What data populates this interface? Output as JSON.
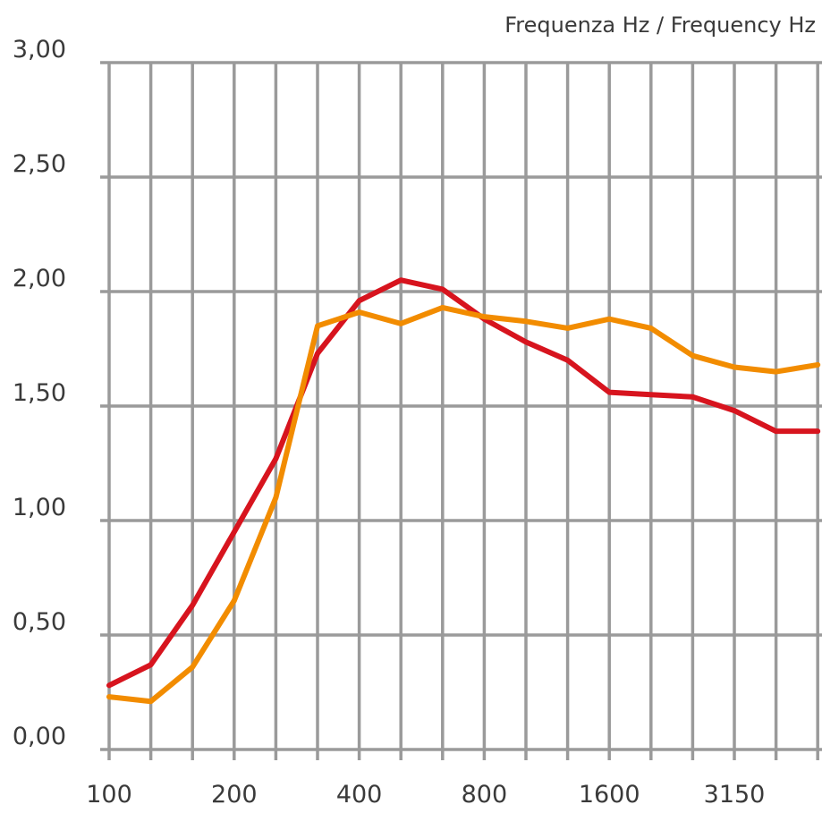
{
  "chart_data": {
    "type": "line",
    "xlabel": "Frequenza Hz / Frequency Hz",
    "ylabel": "",
    "x_tick_labels": [
      "100",
      "200",
      "400",
      "800",
      "1600",
      "3150"
    ],
    "y_tick_labels": [
      "3,00",
      "2,50",
      "2,00",
      "1,50",
      "1,00",
      "0,50",
      "0,00"
    ],
    "x": [
      "100",
      "125",
      "160",
      "200",
      "250",
      "315",
      "400",
      "500",
      "630",
      "800",
      "1000",
      "1250",
      "1600",
      "2000",
      "2500",
      "3150",
      "4000",
      "5000"
    ],
    "ylim": [
      0,
      3
    ],
    "grid": true,
    "series": [
      {
        "color": "#d7141e",
        "values": [
          0.28,
          0.37,
          0.63,
          0.95,
          1.27,
          1.73,
          1.96,
          2.05,
          2.01,
          1.88,
          1.78,
          1.7,
          1.56,
          1.55,
          1.54,
          1.48,
          1.39,
          1.39
        ]
      },
      {
        "color": "#f28c00",
        "values": [
          0.23,
          0.21,
          0.36,
          0.65,
          1.1,
          1.85,
          1.91,
          1.86,
          1.93,
          1.89,
          1.87,
          1.84,
          1.88,
          1.84,
          1.72,
          1.67,
          1.65,
          1.68
        ]
      }
    ]
  }
}
